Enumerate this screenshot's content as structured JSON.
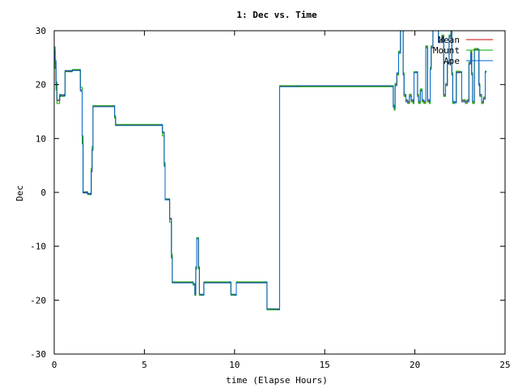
{
  "chart_data": {
    "type": "line",
    "title": "1: Dec vs. Time",
    "xlabel": "time (Elapse Hours)",
    "ylabel": "Dec",
    "xlim": [
      0,
      25
    ],
    "ylim": [
      -30,
      30
    ],
    "x_ticks": [
      0,
      5,
      10,
      15,
      20,
      25
    ],
    "y_ticks": [
      -30,
      -20,
      -10,
      0,
      10,
      20,
      30
    ],
    "grid": false,
    "legend_position": "top-right",
    "series": [
      {
        "name": "Mean",
        "color": "#cc0000",
        "points": [
          [
            0,
            26
          ],
          [
            0.05,
            24
          ],
          [
            0.1,
            20
          ],
          [
            0.15,
            17
          ],
          [
            0.3,
            18
          ],
          [
            0.35,
            18
          ],
          [
            0.55,
            18
          ],
          [
            0.6,
            22.5
          ],
          [
            0.9,
            22.5
          ],
          [
            1.0,
            22.7
          ],
          [
            1.4,
            22.7
          ],
          [
            1.45,
            19
          ],
          [
            1.55,
            10
          ],
          [
            1.6,
            0
          ],
          [
            1.8,
            0
          ],
          [
            1.85,
            -0.3
          ],
          [
            2.0,
            -0.3
          ],
          [
            2.05,
            4
          ],
          [
            2.1,
            8
          ],
          [
            2.15,
            16
          ],
          [
            3.3,
            16
          ],
          [
            3.35,
            14
          ],
          [
            3.4,
            12.5
          ],
          [
            5.9,
            12.5
          ],
          [
            6.0,
            11
          ],
          [
            6.1,
            5
          ],
          [
            6.15,
            -1.3
          ],
          [
            6.35,
            -1.3
          ],
          [
            6.4,
            -5
          ],
          [
            6.5,
            -12
          ],
          [
            6.55,
            -16.7
          ],
          [
            7.6,
            -16.7
          ],
          [
            7.7,
            -17
          ],
          [
            7.8,
            -19
          ],
          [
            7.85,
            -14
          ],
          [
            7.9,
            -8.5
          ],
          [
            8.0,
            -14
          ],
          [
            8.05,
            -19
          ],
          [
            8.2,
            -19
          ],
          [
            8.3,
            -16.7
          ],
          [
            9.7,
            -16.7
          ],
          [
            9.8,
            -19
          ],
          [
            10.0,
            -19
          ],
          [
            10.1,
            -16.7
          ],
          [
            11.7,
            -16.7
          ],
          [
            11.8,
            -21.7
          ],
          [
            12.4,
            -21.7
          ],
          [
            12.5,
            19.7
          ],
          [
            13.5,
            19.7
          ],
          [
            18.7,
            19.7
          ],
          [
            18.8,
            16
          ],
          [
            18.85,
            15.5
          ],
          [
            18.9,
            20
          ],
          [
            19.0,
            22
          ],
          [
            19.1,
            26
          ],
          [
            19.2,
            30
          ],
          [
            19.3,
            30
          ],
          [
            19.35,
            22
          ],
          [
            19.4,
            18
          ],
          [
            19.5,
            17
          ],
          [
            19.6,
            16.7
          ],
          [
            19.7,
            18
          ],
          [
            19.8,
            17
          ],
          [
            19.9,
            16.7
          ],
          [
            19.95,
            22.3
          ],
          [
            20.1,
            22.3
          ],
          [
            20.15,
            18
          ],
          [
            20.2,
            16.7
          ],
          [
            20.3,
            19
          ],
          [
            20.4,
            17
          ],
          [
            20.5,
            16.7
          ],
          [
            20.6,
            27
          ],
          [
            20.7,
            17
          ],
          [
            20.8,
            16.7
          ],
          [
            20.85,
            23
          ],
          [
            20.9,
            27
          ],
          [
            21.0,
            30
          ],
          [
            21.2,
            30
          ],
          [
            21.3,
            28
          ],
          [
            21.5,
            29
          ],
          [
            21.6,
            18
          ],
          [
            21.7,
            20
          ],
          [
            21.8,
            24
          ],
          [
            21.9,
            29
          ],
          [
            22.0,
            30
          ],
          [
            22.05,
            22
          ],
          [
            22.1,
            16.7
          ],
          [
            22.2,
            16.7
          ],
          [
            22.3,
            22.3
          ],
          [
            22.5,
            22.3
          ],
          [
            22.6,
            17
          ],
          [
            22.8,
            16.7
          ],
          [
            22.9,
            17
          ],
          [
            23.0,
            24
          ],
          [
            23.1,
            26
          ],
          [
            23.15,
            22
          ],
          [
            23.2,
            16.7
          ],
          [
            23.3,
            26.5
          ],
          [
            23.5,
            26.5
          ],
          [
            23.55,
            20
          ],
          [
            23.6,
            18
          ],
          [
            23.7,
            16.7
          ],
          [
            23.8,
            17.5
          ],
          [
            23.9,
            22.4
          ],
          [
            23.95,
            22.4
          ]
        ]
      },
      {
        "name": "Mount",
        "color": "#00aa00",
        "points": [
          [
            0,
            27
          ],
          [
            0.05,
            23
          ],
          [
            0.1,
            19
          ],
          [
            0.15,
            16.5
          ],
          [
            0.3,
            18.2
          ],
          [
            0.35,
            17.8
          ],
          [
            0.55,
            18.2
          ],
          [
            0.6,
            22.4
          ],
          [
            0.9,
            22.6
          ],
          [
            1.0,
            22.8
          ],
          [
            1.4,
            22.6
          ],
          [
            1.45,
            19.5
          ],
          [
            1.55,
            9
          ],
          [
            1.6,
            0.1
          ],
          [
            1.8,
            -0.1
          ],
          [
            1.85,
            -0.4
          ],
          [
            2.0,
            -0.2
          ],
          [
            2.05,
            4.5
          ],
          [
            2.1,
            8.5
          ],
          [
            2.15,
            16.1
          ],
          [
            3.3,
            15.9
          ],
          [
            3.35,
            13.8
          ],
          [
            3.4,
            12.6
          ],
          [
            5.9,
            12.4
          ],
          [
            6.0,
            10.5
          ],
          [
            6.1,
            5.5
          ],
          [
            6.15,
            -1.2
          ],
          [
            6.35,
            -1.4
          ],
          [
            6.4,
            -5.5
          ],
          [
            6.5,
            -11.5
          ],
          [
            6.55,
            -16.6
          ],
          [
            7.6,
            -16.8
          ],
          [
            7.7,
            -17.2
          ],
          [
            7.8,
            -19.1
          ],
          [
            7.85,
            -13.8
          ],
          [
            7.9,
            -8.4
          ],
          [
            8.0,
            -14.2
          ],
          [
            8.05,
            -19.1
          ],
          [
            8.2,
            -18.9
          ],
          [
            8.3,
            -16.6
          ],
          [
            9.7,
            -16.8
          ],
          [
            9.8,
            -19.1
          ],
          [
            10.0,
            -18.9
          ],
          [
            10.1,
            -16.6
          ],
          [
            11.7,
            -16.8
          ],
          [
            11.8,
            -21.8
          ],
          [
            12.4,
            -21.6
          ],
          [
            12.5,
            19.8
          ],
          [
            13.5,
            19.6
          ],
          [
            18.7,
            19.8
          ],
          [
            18.8,
            16.2
          ],
          [
            18.85,
            15.3
          ],
          [
            18.9,
            20.2
          ],
          [
            19.0,
            21.8
          ],
          [
            19.1,
            26.2
          ],
          [
            19.2,
            30
          ],
          [
            19.3,
            30
          ],
          [
            19.35,
            22.2
          ],
          [
            19.4,
            17.8
          ],
          [
            19.5,
            17.2
          ],
          [
            19.6,
            16.5
          ],
          [
            19.7,
            18.2
          ],
          [
            19.8,
            16.8
          ],
          [
            19.9,
            16.5
          ],
          [
            19.95,
            22.4
          ],
          [
            20.1,
            22.2
          ],
          [
            20.15,
            18.2
          ],
          [
            20.2,
            16.5
          ],
          [
            20.3,
            19.2
          ],
          [
            20.4,
            16.8
          ],
          [
            20.5,
            16.5
          ],
          [
            20.6,
            27.2
          ],
          [
            20.7,
            16.8
          ],
          [
            20.8,
            16.5
          ],
          [
            20.85,
            23.2
          ],
          [
            20.9,
            27.2
          ],
          [
            21.0,
            30
          ],
          [
            21.2,
            30
          ],
          [
            21.3,
            28.2
          ],
          [
            21.5,
            29.2
          ],
          [
            21.6,
            17.8
          ],
          [
            21.7,
            20.2
          ],
          [
            21.8,
            24.2
          ],
          [
            21.9,
            29.2
          ],
          [
            22.0,
            30
          ],
          [
            22.05,
            22.2
          ],
          [
            22.1,
            16.5
          ],
          [
            22.2,
            16.8
          ],
          [
            22.3,
            22.5
          ],
          [
            22.5,
            22.2
          ],
          [
            22.6,
            17.2
          ],
          [
            22.8,
            16.5
          ],
          [
            22.9,
            17.2
          ],
          [
            23.0,
            24.2
          ],
          [
            23.1,
            26.2
          ],
          [
            23.15,
            22.2
          ],
          [
            23.2,
            16.5
          ],
          [
            23.3,
            26.7
          ],
          [
            23.5,
            26.4
          ],
          [
            23.55,
            20.2
          ],
          [
            23.6,
            17.8
          ],
          [
            23.7,
            16.5
          ],
          [
            23.8,
            17.7
          ],
          [
            23.9,
            22.5
          ],
          [
            23.95,
            22.3
          ]
        ]
      },
      {
        "name": "Ape",
        "color": "#0066cc",
        "points": [
          [
            0,
            26.5
          ],
          [
            0.05,
            24.5
          ],
          [
            0.1,
            20.5
          ],
          [
            0.15,
            17.2
          ],
          [
            0.3,
            17.8
          ],
          [
            0.35,
            18.1
          ],
          [
            0.55,
            17.9
          ],
          [
            0.6,
            22.6
          ],
          [
            0.9,
            22.4
          ],
          [
            1.0,
            22.6
          ],
          [
            1.4,
            22.8
          ],
          [
            1.45,
            18.8
          ],
          [
            1.55,
            10.5
          ],
          [
            1.6,
            -0.1
          ],
          [
            1.8,
            0.1
          ],
          [
            1.85,
            -0.2
          ],
          [
            2.0,
            -0.4
          ],
          [
            2.05,
            3.8
          ],
          [
            2.1,
            7.8
          ],
          [
            2.15,
            15.9
          ],
          [
            3.3,
            16.1
          ],
          [
            3.35,
            14.2
          ],
          [
            3.4,
            12.4
          ],
          [
            5.9,
            12.6
          ],
          [
            6.0,
            11.2
          ],
          [
            6.1,
            4.8
          ],
          [
            6.15,
            -1.4
          ],
          [
            6.35,
            -1.2
          ],
          [
            6.4,
            -4.8
          ],
          [
            6.5,
            -12.2
          ],
          [
            6.55,
            -16.8
          ],
          [
            7.6,
            -16.6
          ],
          [
            7.7,
            -16.9
          ],
          [
            7.8,
            -18.9
          ],
          [
            7.85,
            -14.2
          ],
          [
            7.9,
            -8.6
          ],
          [
            8.0,
            -13.8
          ],
          [
            8.05,
            -18.9
          ],
          [
            8.2,
            -19.1
          ],
          [
            8.3,
            -16.8
          ],
          [
            9.7,
            -16.6
          ],
          [
            9.8,
            -18.9
          ],
          [
            10.0,
            -19.1
          ],
          [
            10.1,
            -16.8
          ],
          [
            11.7,
            -16.6
          ],
          [
            11.8,
            -21.6
          ],
          [
            12.4,
            -21.8
          ],
          [
            12.5,
            19.6
          ],
          [
            13.5,
            19.8
          ],
          [
            18.7,
            19.6
          ],
          [
            18.8,
            15.8
          ],
          [
            18.85,
            15.7
          ],
          [
            18.9,
            19.8
          ],
          [
            19.0,
            22.2
          ],
          [
            19.1,
            25.8
          ],
          [
            19.2,
            30
          ],
          [
            19.3,
            30
          ],
          [
            19.35,
            21.8
          ],
          [
            19.4,
            18.2
          ],
          [
            19.5,
            16.8
          ],
          [
            19.6,
            16.9
          ],
          [
            19.7,
            17.8
          ],
          [
            19.8,
            17.2
          ],
          [
            19.9,
            16.9
          ],
          [
            19.95,
            22.2
          ],
          [
            20.1,
            22.4
          ],
          [
            20.15,
            17.8
          ],
          [
            20.2,
            16.9
          ],
          [
            20.3,
            18.8
          ],
          [
            20.4,
            17.2
          ],
          [
            20.5,
            16.9
          ],
          [
            20.6,
            26.8
          ],
          [
            20.7,
            17.2
          ],
          [
            20.8,
            16.9
          ],
          [
            20.85,
            22.8
          ],
          [
            20.9,
            26.8
          ],
          [
            21.0,
            30
          ],
          [
            21.2,
            30
          ],
          [
            21.3,
            27.8
          ],
          [
            21.5,
            28.8
          ],
          [
            21.6,
            18.2
          ],
          [
            21.7,
            19.8
          ],
          [
            21.8,
            23.8
          ],
          [
            21.9,
            28.8
          ],
          [
            22.0,
            30
          ],
          [
            22.05,
            21.8
          ],
          [
            22.1,
            16.9
          ],
          [
            22.2,
            16.6
          ],
          [
            22.3,
            22.2
          ],
          [
            22.5,
            22.4
          ],
          [
            22.6,
            16.8
          ],
          [
            22.8,
            16.9
          ],
          [
            22.9,
            16.8
          ],
          [
            23.0,
            23.8
          ],
          [
            23.1,
            25.8
          ],
          [
            23.15,
            21.8
          ],
          [
            23.2,
            16.9
          ],
          [
            23.3,
            26.4
          ],
          [
            23.5,
            26.6
          ],
          [
            23.55,
            19.8
          ],
          [
            23.6,
            18.2
          ],
          [
            23.7,
            16.9
          ],
          [
            23.8,
            17.3
          ],
          [
            23.9,
            22.3
          ],
          [
            23.95,
            22.5
          ]
        ]
      }
    ]
  }
}
